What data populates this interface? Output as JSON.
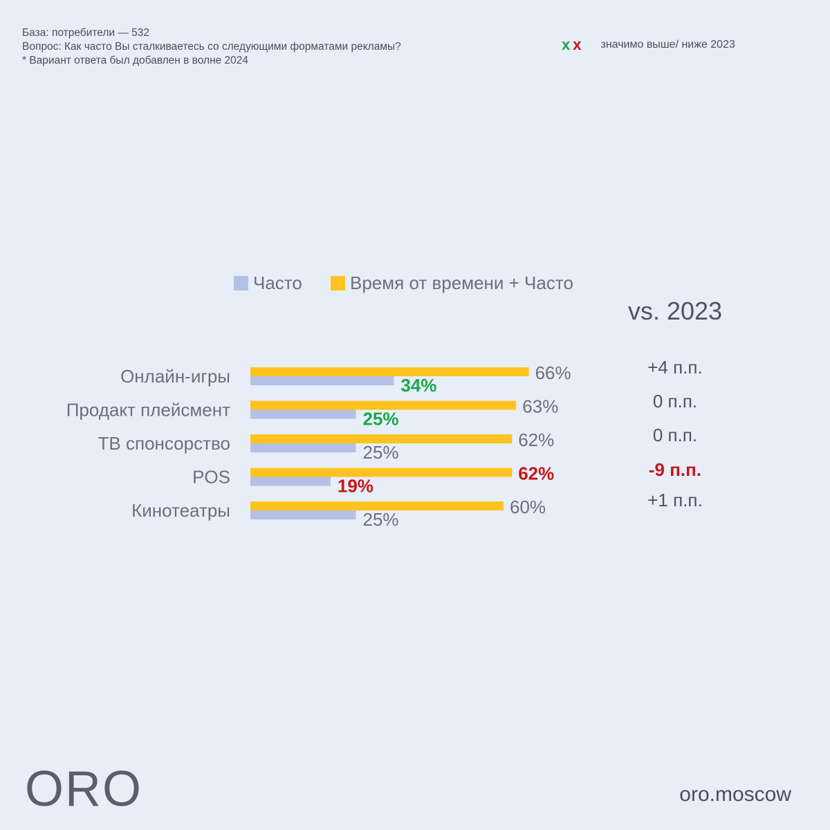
{
  "notes": {
    "base": "База: потребители — 532",
    "question": "Вопрос: Как часто Вы сталкиваетесь со следующими форматами рекламы?",
    "footnote": "* Вариант ответа был добавлен в волне 2024"
  },
  "significance": {
    "up_mark": "x",
    "down_mark": "x",
    "text": "значимо выше/ ниже 2023",
    "up_color": "#1aa84a",
    "down_color": "#c8151b"
  },
  "chart_data": {
    "type": "bar",
    "orientation": "horizontal",
    "categories": [
      "Онлайн-игры",
      "Продакт плейсмент",
      "ТВ спонсорство",
      "POS",
      "Кинотеатры"
    ],
    "series": [
      {
        "name": "Часто",
        "color": "#b4c0e4",
        "values": [
          34,
          25,
          25,
          19,
          25
        ],
        "labels": [
          "34%",
          "25%",
          "25%",
          "19%",
          "25%"
        ],
        "significance": [
          "up",
          "up",
          "none",
          "down",
          "none"
        ]
      },
      {
        "name": "Время от времени + Часто",
        "color": "#ffc21f",
        "values": [
          66,
          63,
          62,
          62,
          60
        ],
        "labels": [
          "66%",
          "63%",
          "62%",
          "62%",
          "60%"
        ],
        "significance": [
          "none",
          "none",
          "none",
          "down",
          "none"
        ]
      }
    ],
    "comparison": {
      "title": "vs. 2023",
      "values": [
        "+4 п.п.",
        "0 п.п.",
        "0 п.п.",
        "-9 п.п.",
        "+1 п.п."
      ],
      "significance": [
        "none",
        "none",
        "none",
        "down",
        "none"
      ]
    },
    "legend": "top",
    "grid": false,
    "xlim": [
      0,
      100
    ]
  },
  "brand": {
    "logo": "ORO",
    "site": "oro.moscow"
  },
  "colors": {
    "background": "#e8eef7",
    "text": "#6b707c",
    "up": "#1aa84a",
    "down": "#c8151b"
  }
}
